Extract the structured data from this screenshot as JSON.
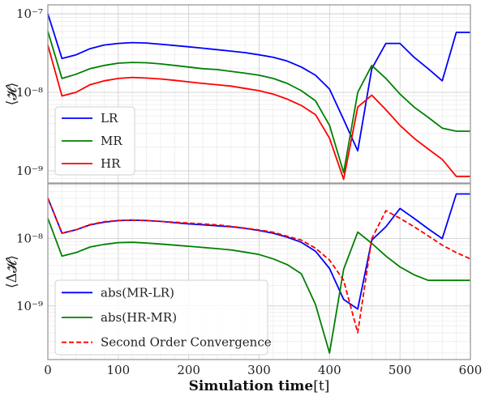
{
  "chart_data": [
    {
      "type": "line",
      "ylabel": "⟨𝓗⟩",
      "yscale": "log",
      "ylim": [
        7e-10,
        1.3e-07
      ],
      "xlim": [
        0,
        600
      ],
      "grid": true,
      "legend": "lower-left",
      "ytick_labels": [
        "10⁻⁹",
        "10⁻⁸",
        "10⁻⁷"
      ],
      "x": [
        0,
        20,
        40,
        60,
        80,
        100,
        120,
        140,
        160,
        180,
        200,
        220,
        240,
        260,
        280,
        300,
        320,
        340,
        360,
        380,
        400,
        420,
        440,
        460,
        480,
        500,
        520,
        540,
        560,
        580,
        600
      ],
      "series": [
        {
          "name": "LR",
          "color": "#0000ff",
          "dash": false,
          "values": [
            1e-07,
            2.7e-08,
            3e-08,
            3.6e-08,
            4e-08,
            4.2e-08,
            4.3e-08,
            4.25e-08,
            4.1e-08,
            3.95e-08,
            3.8e-08,
            3.65e-08,
            3.5e-08,
            3.35e-08,
            3.2e-08,
            3e-08,
            2.8e-08,
            2.5e-08,
            2.1e-08,
            1.65e-08,
            1.1e-08,
            4.5e-09,
            1.8e-09,
            2e-08,
            4.2e-08,
            4.2e-08,
            2.8e-08,
            2e-08,
            1.4e-08,
            5.8e-08,
            5.8e-08
          ]
        },
        {
          "name": "MR",
          "color": "#008000",
          "dash": false,
          "values": [
            6e-08,
            1.5e-08,
            1.7e-08,
            2e-08,
            2.2e-08,
            2.35e-08,
            2.4e-08,
            2.38e-08,
            2.3e-08,
            2.2e-08,
            2.1e-08,
            2e-08,
            1.95e-08,
            1.85e-08,
            1.75e-08,
            1.65e-08,
            1.5e-08,
            1.3e-08,
            1.05e-08,
            7.8e-09,
            3.8e-09,
            9.5e-10,
            1e-08,
            2.2e-08,
            1.5e-08,
            9.5e-09,
            6.5e-09,
            4.8e-09,
            3.5e-09,
            3.2e-09,
            3.2e-09
          ]
        },
        {
          "name": "HR",
          "color": "#ff0000",
          "dash": false,
          "values": [
            4e-08,
            9e-09,
            1e-08,
            1.25e-08,
            1.4e-08,
            1.5e-08,
            1.55e-08,
            1.52e-08,
            1.48e-08,
            1.42e-08,
            1.36e-08,
            1.3e-08,
            1.25e-08,
            1.2e-08,
            1.12e-08,
            1.05e-08,
            9.5e-09,
            8.2e-09,
            6.8e-09,
            5.2e-09,
            2.6e-09,
            7.8e-10,
            6.5e-09,
            9.2e-09,
            6e-09,
            3.8e-09,
            2.6e-09,
            1.9e-09,
            1.4e-09,
            8.5e-10,
            8.5e-10
          ]
        }
      ]
    },
    {
      "type": "line",
      "ylabel": "⟨Δ𝓗⟩",
      "xlabel": "Simulation time",
      "xlabel_unit": "[t]",
      "yscale": "log",
      "ylim": [
        1.6e-10,
        6.5e-08
      ],
      "xlim": [
        0,
        600
      ],
      "grid": true,
      "legend": "lower-left",
      "xtick_labels": [
        "0",
        "100",
        "200",
        "300",
        "400",
        "500",
        "600"
      ],
      "ytick_labels": [
        "10⁻⁹",
        "10⁻⁸"
      ],
      "x": [
        0,
        20,
        40,
        60,
        80,
        100,
        120,
        140,
        160,
        180,
        200,
        220,
        240,
        260,
        280,
        300,
        320,
        340,
        360,
        380,
        400,
        420,
        440,
        460,
        480,
        500,
        520,
        540,
        560,
        580,
        600
      ],
      "series": [
        {
          "name": "abs(MR-LR)",
          "color": "#0000ff",
          "dash": false,
          "values": [
            4e-08,
            1.2e-08,
            1.35e-08,
            1.6e-08,
            1.75e-08,
            1.85e-08,
            1.88e-08,
            1.85e-08,
            1.8e-08,
            1.72e-08,
            1.65e-08,
            1.6e-08,
            1.55e-08,
            1.5e-08,
            1.42e-08,
            1.32e-08,
            1.2e-08,
            1.05e-08,
            8.8e-09,
            6.5e-09,
            3.6e-09,
            1.25e-09,
            9e-10,
            9.5e-09,
            1.5e-08,
            2.8e-08,
            2e-08,
            1.4e-08,
            1e-08,
            4.6e-08,
            4.6e-08
          ]
        },
        {
          "name": "abs(HR-MR)",
          "color": "#008000",
          "dash": false,
          "values": [
            2e-08,
            5.5e-09,
            6.2e-09,
            7.5e-09,
            8.2e-09,
            8.7e-09,
            8.8e-09,
            8.6e-09,
            8.3e-09,
            8e-09,
            7.7e-09,
            7.4e-09,
            7.1e-09,
            6.8e-09,
            6.3e-09,
            5.8e-09,
            5e-09,
            4.1e-09,
            3e-09,
            1.05e-09,
            2e-10,
            3.5e-09,
            1.25e-08,
            8.5e-09,
            5.5e-09,
            3.8e-09,
            2.9e-09,
            2.4e-09,
            2.4e-09,
            2.4e-09,
            2.4e-09
          ]
        },
        {
          "name": "Second Order Convergence",
          "color": "#ff0000",
          "dash": true,
          "values": [
            4e-08,
            1.2e-08,
            1.35e-08,
            1.62e-08,
            1.78e-08,
            1.86e-08,
            1.88e-08,
            1.86e-08,
            1.8e-08,
            1.75e-08,
            1.7e-08,
            1.65e-08,
            1.6e-08,
            1.52e-08,
            1.43e-08,
            1.34e-08,
            1.24e-08,
            1.08e-08,
            9.5e-09,
            7.2e-09,
            4.8e-09,
            2.4e-09,
            4e-10,
            1e-08,
            2.6e-08,
            2e-08,
            1.5e-08,
            1.1e-08,
            8e-09,
            6.2e-09,
            5e-09
          ]
        }
      ]
    }
  ]
}
